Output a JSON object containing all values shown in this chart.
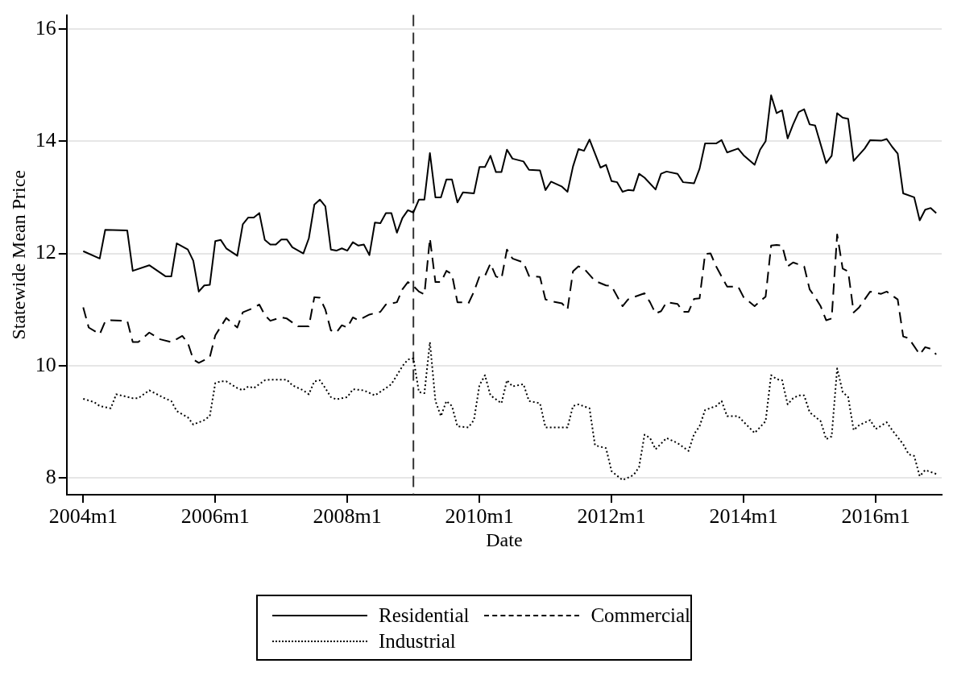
{
  "chart_data": {
    "type": "line",
    "xlabel": "Date",
    "ylabel": "Statewide Mean Price",
    "xlim": [
      "2003-10",
      "2017-01"
    ],
    "xticks": [
      {
        "value": "2004-01",
        "label": "2004m1"
      },
      {
        "value": "2006-01",
        "label": "2006m1"
      },
      {
        "value": "2008-01",
        "label": "2008m1"
      },
      {
        "value": "2010-01",
        "label": "2010m1"
      },
      {
        "value": "2012-01",
        "label": "2012m1"
      },
      {
        "value": "2014-01",
        "label": "2014m1"
      },
      {
        "value": "2016-01",
        "label": "2016m1"
      }
    ],
    "ylim": [
      7.7,
      16.25
    ],
    "yticks": [
      8,
      10,
      12,
      14,
      16
    ],
    "grid": "y",
    "legend": "bottom",
    "marker": "none",
    "ref_lines": [
      {
        "axis": "x",
        "value": "2009-01",
        "label": null,
        "color": "#333333",
        "line_style": "dashed"
      }
    ],
    "series": [
      {
        "name": "Residential",
        "color": "#000000",
        "line_style": "solid",
        "x": [
          "2004-01",
          "2004-04",
          "2004-05",
          "2004-09",
          "2004-10",
          "2005-01",
          "2005-04",
          "2005-05",
          "2005-06",
          "2005-08",
          "2005-09",
          "2005-10",
          "2005-11",
          "2005-12",
          "2006-01",
          "2006-02",
          "2006-03",
          "2006-05",
          "2006-06",
          "2006-07",
          "2006-08",
          "2006-09",
          "2006-10",
          "2006-11",
          "2006-12",
          "2007-01",
          "2007-02",
          "2007-03",
          "2007-05",
          "2007-06",
          "2007-07",
          "2007-08",
          "2007-09",
          "2007-10",
          "2007-11",
          "2007-12",
          "2008-01",
          "2008-02",
          "2008-03",
          "2008-04",
          "2008-05",
          "2008-06",
          "2008-07",
          "2008-08",
          "2008-09",
          "2008-10",
          "2008-11",
          "2008-12",
          "2009-01",
          "2009-02",
          "2009-03",
          "2009-04",
          "2009-05",
          "2009-06",
          "2009-07",
          "2009-08",
          "2009-09",
          "2009-10",
          "2009-12",
          "2010-01",
          "2010-02",
          "2010-03",
          "2010-04",
          "2010-05",
          "2010-06",
          "2010-07",
          "2010-09",
          "2010-10",
          "2010-12",
          "2011-01",
          "2011-02",
          "2011-04",
          "2011-05",
          "2011-06",
          "2011-07",
          "2011-08",
          "2011-09",
          "2011-11",
          "2011-12",
          "2012-01",
          "2012-02",
          "2012-03",
          "2012-04",
          "2012-05",
          "2012-06",
          "2012-07",
          "2012-09",
          "2012-10",
          "2012-11",
          "2013-01",
          "2013-02",
          "2013-04",
          "2013-05",
          "2013-06",
          "2013-08",
          "2013-09",
          "2013-10",
          "2013-12",
          "2014-01",
          "2014-03",
          "2014-04",
          "2014-05",
          "2014-06",
          "2014-07",
          "2014-08",
          "2014-09",
          "2014-10",
          "2014-11",
          "2014-12",
          "2015-01",
          "2015-02",
          "2015-04",
          "2015-05",
          "2015-06",
          "2015-07",
          "2015-08",
          "2015-09",
          "2015-11",
          "2015-12",
          "2016-02",
          "2016-03",
          "2016-04",
          "2016-05",
          "2016-06",
          "2016-08",
          "2016-09",
          "2016-10",
          "2016-11",
          "2016-12"
        ],
        "values": [
          12.04,
          11.91,
          12.42,
          12.41,
          11.69,
          11.79,
          11.59,
          11.59,
          12.18,
          12.07,
          11.87,
          11.32,
          11.43,
          11.44,
          12.22,
          12.24,
          12.09,
          11.96,
          12.52,
          12.64,
          12.64,
          12.72,
          12.24,
          12.16,
          12.16,
          12.25,
          12.25,
          12.11,
          12.0,
          12.27,
          12.87,
          12.96,
          12.84,
          12.07,
          12.05,
          12.09,
          12.05,
          12.2,
          12.14,
          12.16,
          11.97,
          12.55,
          12.54,
          12.72,
          12.72,
          12.37,
          12.63,
          12.77,
          12.73,
          12.96,
          12.96,
          13.79,
          13.0,
          13.0,
          13.32,
          13.32,
          12.91,
          13.09,
          13.07,
          13.54,
          13.54,
          13.74,
          13.45,
          13.45,
          13.85,
          13.69,
          13.64,
          13.49,
          13.48,
          13.13,
          13.28,
          13.19,
          13.1,
          13.55,
          13.86,
          13.83,
          14.03,
          13.53,
          13.58,
          13.29,
          13.27,
          13.1,
          13.13,
          13.12,
          13.42,
          13.35,
          13.14,
          13.42,
          13.46,
          13.42,
          13.27,
          13.25,
          13.51,
          13.96,
          13.96,
          14.02,
          13.8,
          13.87,
          13.75,
          13.58,
          13.85,
          14.0,
          14.82,
          14.5,
          14.55,
          14.05,
          14.3,
          14.52,
          14.57,
          14.3,
          14.28,
          13.61,
          13.74,
          14.5,
          14.42,
          14.4,
          13.65,
          13.87,
          14.02,
          14.01,
          14.04,
          13.9,
          13.78,
          13.07,
          13.0,
          12.59,
          12.78,
          12.81,
          12.72
        ]
      },
      {
        "name": "Commercial",
        "color": "#000000",
        "line_style": "dashed",
        "x": [
          "2004-01",
          "2004-02",
          "2004-04",
          "2004-05",
          "2004-06",
          "2004-09",
          "2004-10",
          "2004-11",
          "2005-01",
          "2005-03",
          "2005-05",
          "2005-07",
          "2005-08",
          "2005-09",
          "2005-10",
          "2005-12",
          "2006-01",
          "2006-03",
          "2006-05",
          "2006-06",
          "2006-08",
          "2006-09",
          "2006-10",
          "2006-11",
          "2007-01",
          "2007-02",
          "2007-04",
          "2007-06",
          "2007-07",
          "2007-08",
          "2007-09",
          "2007-10",
          "2007-11",
          "2007-12",
          "2008-01",
          "2008-02",
          "2008-03",
          "2008-05",
          "2008-07",
          "2008-08",
          "2008-10",
          "2008-11",
          "2008-12",
          "2009-01",
          "2009-02",
          "2009-03",
          "2009-04",
          "2009-05",
          "2009-06",
          "2009-07",
          "2009-08",
          "2009-09",
          "2009-10",
          "2009-11",
          "2009-12",
          "2010-01",
          "2010-02",
          "2010-03",
          "2010-04",
          "2010-05",
          "2010-06",
          "2010-07",
          "2010-09",
          "2010-10",
          "2010-12",
          "2011-01",
          "2011-02",
          "2011-04",
          "2011-05",
          "2011-06",
          "2011-07",
          "2011-08",
          "2011-10",
          "2011-12",
          "2012-01",
          "2012-03",
          "2012-04",
          "2012-05",
          "2012-07",
          "2012-08",
          "2012-09",
          "2012-10",
          "2012-11",
          "2013-01",
          "2013-02",
          "2013-03",
          "2013-04",
          "2013-05",
          "2013-06",
          "2013-07",
          "2013-08",
          "2013-10",
          "2013-12",
          "2014-01",
          "2014-03",
          "2014-04",
          "2014-05",
          "2014-06",
          "2014-07",
          "2014-08",
          "2014-09",
          "2014-10",
          "2014-12",
          "2015-01",
          "2015-02",
          "2015-03",
          "2015-04",
          "2015-05",
          "2015-06",
          "2015-07",
          "2015-08",
          "2015-09",
          "2015-10",
          "2015-11",
          "2015-12",
          "2016-02",
          "2016-03",
          "2016-05",
          "2016-06",
          "2016-07",
          "2016-09",
          "2016-10",
          "2016-11",
          "2016-12"
        ],
        "values": [
          11.04,
          10.68,
          10.56,
          10.79,
          10.81,
          10.8,
          10.42,
          10.42,
          10.59,
          10.47,
          10.42,
          10.53,
          10.41,
          10.11,
          10.05,
          10.15,
          10.54,
          10.85,
          10.68,
          10.95,
          11.03,
          11.09,
          10.9,
          10.8,
          10.86,
          10.84,
          10.7,
          10.7,
          11.22,
          11.21,
          11.0,
          10.63,
          10.59,
          10.72,
          10.68,
          10.86,
          10.81,
          10.91,
          10.96,
          11.09,
          11.13,
          11.36,
          11.49,
          11.42,
          11.32,
          11.27,
          12.27,
          11.49,
          11.49,
          11.69,
          11.63,
          11.13,
          11.13,
          11.11,
          11.32,
          11.59,
          11.6,
          11.82,
          11.59,
          11.55,
          12.07,
          11.91,
          11.84,
          11.6,
          11.58,
          11.18,
          11.15,
          11.11,
          11.0,
          11.68,
          11.77,
          11.73,
          11.51,
          11.43,
          11.42,
          11.06,
          11.18,
          11.22,
          11.29,
          11.13,
          10.93,
          10.97,
          11.13,
          11.1,
          10.96,
          10.96,
          11.19,
          11.2,
          11.99,
          12.0,
          11.77,
          11.41,
          11.41,
          11.22,
          11.06,
          11.15,
          11.23,
          12.14,
          12.15,
          12.14,
          11.77,
          11.84,
          11.77,
          11.36,
          11.22,
          11.06,
          10.81,
          10.84,
          12.34,
          11.73,
          11.68,
          10.95,
          11.04,
          11.18,
          11.32,
          11.28,
          11.32,
          11.18,
          10.52,
          10.49,
          10.2,
          10.33,
          10.3,
          10.2
        ]
      },
      {
        "name": "Industrial",
        "color": "#000000",
        "line_style": "dotted",
        "x": [
          "2004-01",
          "2004-03",
          "2004-04",
          "2004-06",
          "2004-07",
          "2004-10",
          "2004-11",
          "2005-01",
          "2005-04",
          "2005-05",
          "2005-06",
          "2005-08",
          "2005-09",
          "2005-11",
          "2005-12",
          "2006-01",
          "2006-02",
          "2006-03",
          "2006-05",
          "2006-06",
          "2006-07",
          "2006-08",
          "2006-10",
          "2006-11",
          "2007-01",
          "2007-02",
          "2007-03",
          "2007-05",
          "2007-06",
          "2007-07",
          "2007-08",
          "2007-09",
          "2007-10",
          "2007-11",
          "2008-01",
          "2008-02",
          "2008-04",
          "2008-06",
          "2008-08",
          "2008-09",
          "2008-11",
          "2008-12",
          "2009-01",
          "2009-02",
          "2009-03",
          "2009-04",
          "2009-05",
          "2009-06",
          "2009-07",
          "2009-08",
          "2009-09",
          "2009-11",
          "2009-12",
          "2010-01",
          "2010-02",
          "2010-03",
          "2010-05",
          "2010-06",
          "2010-07",
          "2010-09",
          "2010-10",
          "2010-12",
          "2011-01",
          "2011-03",
          "2011-05",
          "2011-06",
          "2011-07",
          "2011-09",
          "2011-10",
          "2011-12",
          "2012-01",
          "2012-03",
          "2012-05",
          "2012-06",
          "2012-07",
          "2012-08",
          "2012-09",
          "2012-11",
          "2013-01",
          "2013-03",
          "2013-04",
          "2013-05",
          "2013-06",
          "2013-08",
          "2013-09",
          "2013-10",
          "2013-12",
          "2014-02",
          "2014-03",
          "2014-05",
          "2014-06",
          "2014-07",
          "2014-08",
          "2014-09",
          "2014-10",
          "2014-11",
          "2014-12",
          "2015-01",
          "2015-03",
          "2015-04",
          "2015-05",
          "2015-06",
          "2015-07",
          "2015-08",
          "2015-09",
          "2015-10",
          "2015-12",
          "2016-01",
          "2016-03",
          "2016-04",
          "2016-06",
          "2016-07",
          "2016-08",
          "2016-09",
          "2016-10",
          "2016-12"
        ],
        "values": [
          9.41,
          9.35,
          9.28,
          9.24,
          9.49,
          9.42,
          9.42,
          9.56,
          9.41,
          9.37,
          9.19,
          9.08,
          8.95,
          9.03,
          9.1,
          9.69,
          9.72,
          9.72,
          9.6,
          9.56,
          9.63,
          9.6,
          9.74,
          9.75,
          9.75,
          9.75,
          9.65,
          9.56,
          9.49,
          9.72,
          9.74,
          9.6,
          9.44,
          9.4,
          9.44,
          9.58,
          9.56,
          9.47,
          9.6,
          9.67,
          9.99,
          10.11,
          10.13,
          9.53,
          9.51,
          10.42,
          9.37,
          9.1,
          9.37,
          9.28,
          8.92,
          8.9,
          9.03,
          9.65,
          9.83,
          9.47,
          9.33,
          9.74,
          9.63,
          9.67,
          9.37,
          9.33,
          8.9,
          8.9,
          8.9,
          9.28,
          9.31,
          9.24,
          8.58,
          8.53,
          8.12,
          7.96,
          8.05,
          8.19,
          8.77,
          8.71,
          8.51,
          8.71,
          8.62,
          8.48,
          8.78,
          8.92,
          9.21,
          9.28,
          9.37,
          9.1,
          9.1,
          8.9,
          8.8,
          9.01,
          9.83,
          9.76,
          9.74,
          9.31,
          9.42,
          9.47,
          9.47,
          9.17,
          9.01,
          8.69,
          8.74,
          9.95,
          9.53,
          9.44,
          8.85,
          8.94,
          9.03,
          8.87,
          8.99,
          8.85,
          8.6,
          8.42,
          8.39,
          8.03,
          8.14,
          8.07
        ]
      }
    ]
  }
}
